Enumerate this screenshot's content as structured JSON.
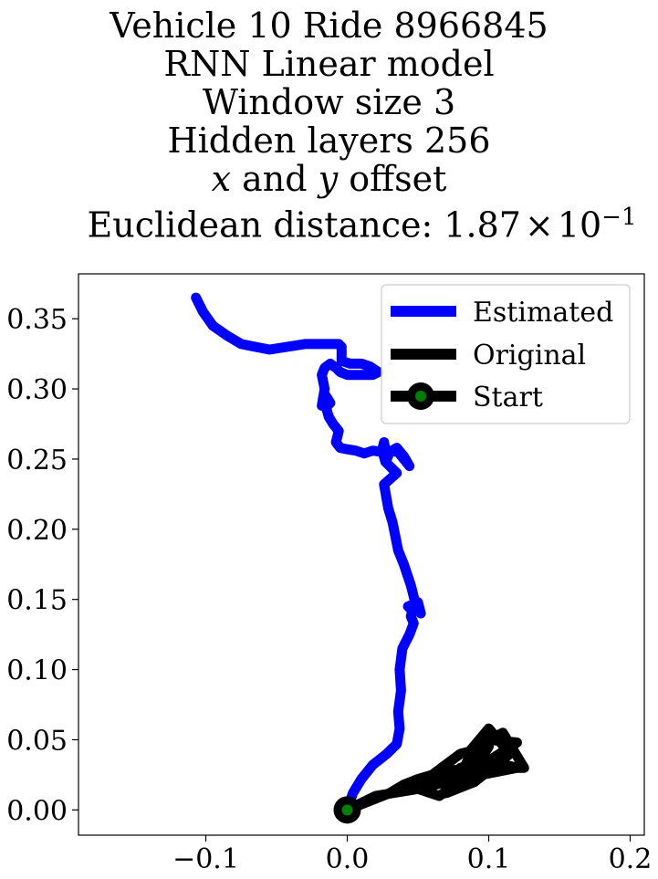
{
  "title_lines": {
    "line1": "Vehicle 10 Ride 8966845",
    "line2": "RNN Linear model",
    "line3": "Window size 3",
    "line4": "Hidden layers 256",
    "line5_x": "x",
    "line5_and": " and ",
    "line5_y": "y",
    "line5_rest": " offset",
    "line6_prefix": "Euclidean distance: 1.87",
    "line6_times": "×",
    "line6_base": "10",
    "line6_exp": "−1"
  },
  "chart_data": {
    "type": "line",
    "title": "Vehicle 10 Ride 8966845 / RNN Linear model / Window size 3 / Hidden layers 256 / x and y offset / Euclidean distance: 1.87×10^-1",
    "xlabel": "",
    "ylabel": "",
    "xlim": [
      -0.19,
      0.21
    ],
    "ylim": [
      -0.018,
      0.382
    ],
    "x_ticks": [
      -0.1,
      0.0,
      0.1,
      0.2
    ],
    "x_tick_labels": [
      "−0.1",
      "0.0",
      "0.1",
      "0.2"
    ],
    "y_ticks": [
      0.0,
      0.05,
      0.1,
      0.15,
      0.2,
      0.25,
      0.3,
      0.35
    ],
    "y_tick_labels": [
      "0.00",
      "0.05",
      "0.10",
      "0.15",
      "0.20",
      "0.25",
      "0.30",
      "0.35"
    ],
    "grid": false,
    "legend_position": "top-right",
    "colors": {
      "estimated": "#0000ff",
      "original": "#000000",
      "start_edge": "#000000",
      "start_face": "#008000"
    },
    "series": [
      {
        "name": "Estimated",
        "x": [
          0.0,
          0.004,
          0.01,
          0.018,
          0.028,
          0.035,
          0.037,
          0.036,
          0.038,
          0.037,
          0.039,
          0.044,
          0.047,
          0.045,
          0.046,
          0.043,
          0.05,
          0.052,
          0.048,
          0.045,
          0.04,
          0.036,
          0.034,
          0.032,
          0.029,
          0.026,
          0.035,
          0.027,
          0.025,
          0.025,
          0.026,
          0.028,
          0.03,
          0.035,
          0.04,
          0.044,
          0.036,
          0.03,
          0.025,
          0.018,
          0.012,
          0.006,
          0.0,
          -0.005,
          -0.008,
          -0.006,
          -0.01,
          -0.013,
          -0.015,
          -0.012,
          -0.015,
          -0.018,
          -0.016,
          -0.018,
          -0.016,
          -0.012,
          -0.008,
          -0.005,
          0.0,
          0.008,
          0.018,
          0.022,
          0.016,
          0.01,
          0.002,
          -0.004,
          -0.004,
          -0.006,
          -0.03,
          -0.055,
          -0.065,
          -0.075,
          -0.085,
          -0.095,
          -0.102,
          -0.107
        ],
        "y": [
          0.0,
          0.012,
          0.022,
          0.032,
          0.04,
          0.047,
          0.058,
          0.07,
          0.085,
          0.1,
          0.115,
          0.125,
          0.133,
          0.138,
          0.142,
          0.145,
          0.148,
          0.14,
          0.148,
          0.16,
          0.175,
          0.185,
          0.195,
          0.205,
          0.215,
          0.232,
          0.24,
          0.248,
          0.255,
          0.258,
          0.262,
          0.25,
          0.255,
          0.258,
          0.252,
          0.245,
          0.255,
          0.256,
          0.255,
          0.256,
          0.254,
          0.256,
          0.257,
          0.258,
          0.262,
          0.27,
          0.275,
          0.28,
          0.287,
          0.29,
          0.295,
          0.288,
          0.3,
          0.31,
          0.315,
          0.318,
          0.315,
          0.312,
          0.31,
          0.31,
          0.31,
          0.312,
          0.316,
          0.318,
          0.318,
          0.32,
          0.33,
          0.332,
          0.332,
          0.328,
          0.33,
          0.332,
          0.338,
          0.345,
          0.355,
          0.365
        ]
      },
      {
        "name": "Original",
        "x": [
          0.0,
          0.02,
          0.05,
          0.07,
          0.09,
          0.1,
          0.08,
          0.06,
          0.05,
          0.065,
          0.08,
          0.1,
          0.12,
          0.1,
          0.08,
          0.09,
          0.11,
          0.125,
          0.1,
          0.085,
          0.1,
          0.115,
          0.09,
          0.07,
          0.08,
          0.1,
          0.12,
          0.095,
          0.075,
          0.06,
          0.08,
          0.1,
          0.07,
          0.05,
          0.04,
          0.03,
          0.02,
          0.01,
          0.0
        ],
        "y": [
          0.0,
          0.01,
          0.015,
          0.02,
          0.03,
          0.045,
          0.04,
          0.025,
          0.015,
          0.01,
          0.02,
          0.05,
          0.048,
          0.035,
          0.025,
          0.045,
          0.055,
          0.03,
          0.03,
          0.04,
          0.058,
          0.04,
          0.02,
          0.012,
          0.03,
          0.035,
          0.03,
          0.025,
          0.02,
          0.025,
          0.028,
          0.03,
          0.028,
          0.022,
          0.018,
          0.012,
          0.008,
          0.004,
          0.0
        ]
      }
    ],
    "start": {
      "name": "Start",
      "x": 0.0,
      "y": 0.0
    }
  }
}
